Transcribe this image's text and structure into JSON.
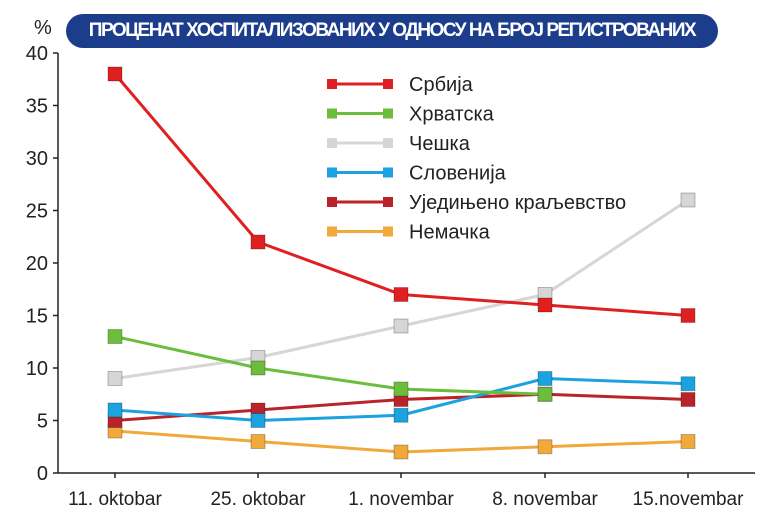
{
  "chart_data": {
    "type": "line",
    "title": "ПРОЦЕНАТ ХОСПИТАЛИЗОВАНИХ У ОДНОСУ НА БРОЈ РЕГИСТРОВАНИХ",
    "ylabel": "%",
    "xlabel": "",
    "ylim": [
      0,
      40
    ],
    "yticks": [
      0,
      5,
      10,
      15,
      20,
      25,
      30,
      35,
      40
    ],
    "grid": false,
    "legend_position": "top-right",
    "categories": [
      "11. oktobar",
      "25. oktobar",
      "1. novembar",
      "8. novembar",
      "15.novembar"
    ],
    "series": [
      {
        "name": "Србија",
        "color": "#e02020",
        "values": [
          38,
          22,
          17,
          16,
          15
        ]
      },
      {
        "name": "Хрватска",
        "color": "#6cbd3c",
        "values": [
          13,
          10,
          8,
          7.5,
          null
        ]
      },
      {
        "name": "Чешка",
        "color": "#d6d6d6",
        "values": [
          9,
          11,
          14,
          17,
          26
        ]
      },
      {
        "name": "Словенија",
        "color": "#1aa3e0",
        "values": [
          6,
          5,
          5.5,
          9,
          8.5
        ]
      },
      {
        "name": "Уједињено краљевство",
        "color": "#b8242a",
        "values": [
          5,
          6,
          7,
          7.5,
          7
        ]
      },
      {
        "name": "Немачка",
        "color": "#f2a93b",
        "values": [
          4,
          3,
          2,
          2.5,
          3
        ]
      }
    ]
  }
}
